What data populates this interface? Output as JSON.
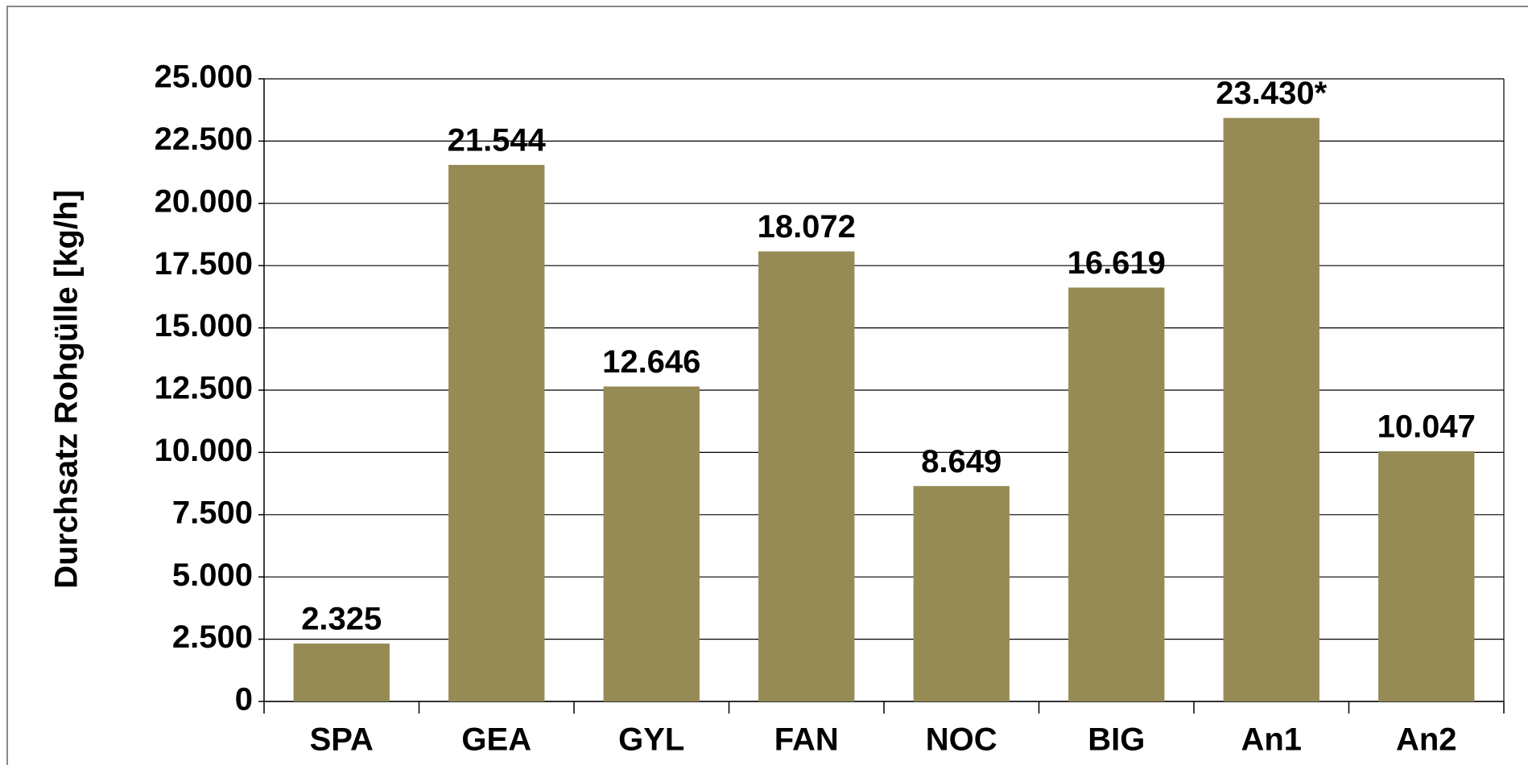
{
  "chart_data": {
    "type": "bar",
    "y_label": "Durchsatz Rohgülle [kg/h]",
    "categories": [
      "SPA",
      "GEA",
      "GYL",
      "FAN",
      "NOC",
      "BIG",
      "An1",
      "An2"
    ],
    "values": [
      2325,
      21544,
      12646,
      18072,
      8649,
      16619,
      23430,
      10047
    ],
    "value_labels": [
      "2.325",
      "21.544",
      "12.646",
      "18.072",
      "8.649",
      "16.619",
      "23.430*",
      "10.047"
    ],
    "color": "#968b55",
    "ylim": [
      0,
      25000
    ],
    "yticks": [
      0,
      {
        "value": 2500,
        "label": "2.500"
      },
      {
        "value": 5000,
        "label": "5.000"
      },
      {
        "value": 7500,
        "label": "7.500"
      },
      {
        "value": 10000,
        "label": "10.000"
      },
      {
        "value": 12500,
        "label": "12.500"
      },
      {
        "value": 15000,
        "label": "15.000"
      },
      {
        "value": 17500,
        "label": "17.500"
      },
      {
        "value": 20000,
        "label": "20.000"
      },
      {
        "value": 22500,
        "label": "22.500"
      },
      {
        "value": 25000,
        "label": "25.000"
      }
    ],
    "grid": true
  }
}
